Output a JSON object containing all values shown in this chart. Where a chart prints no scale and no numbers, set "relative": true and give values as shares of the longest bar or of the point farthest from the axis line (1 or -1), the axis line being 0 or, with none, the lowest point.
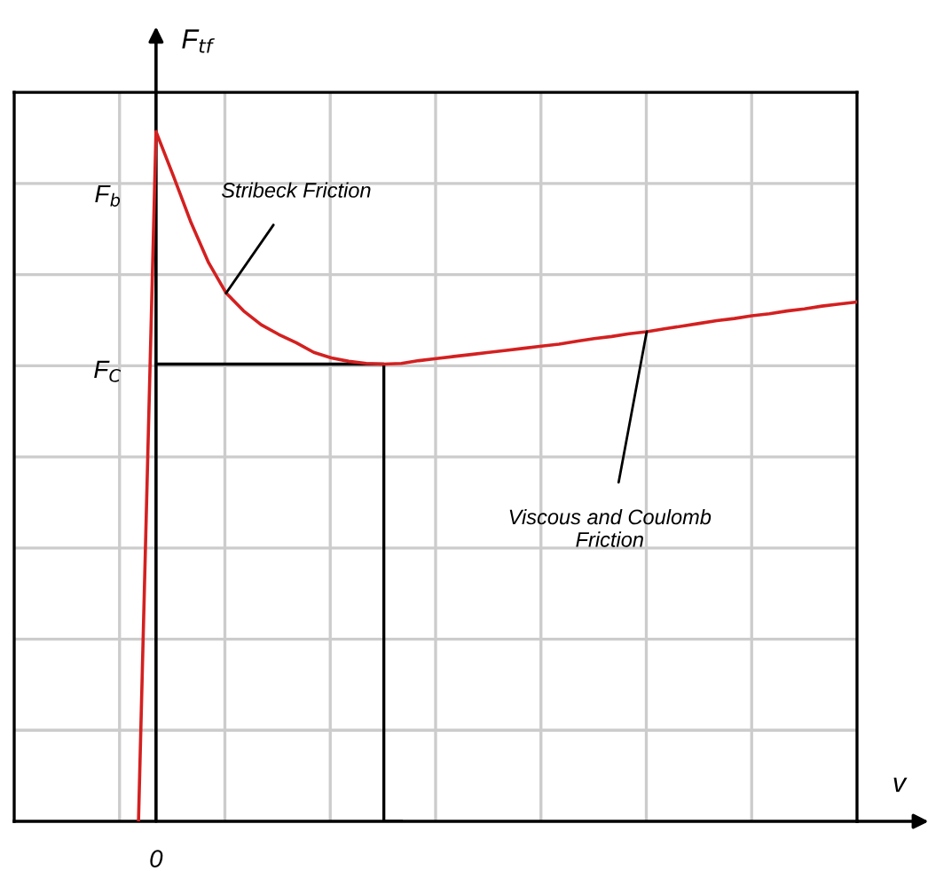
{
  "chart_data": {
    "type": "line",
    "relative": true,
    "ylabel": "F$_{tf}$",
    "xlabel": "v",
    "categories": [
      null,
      null,
      null,
      null,
      null,
      null,
      null,
      null,
      null,
      null,
      null,
      null,
      null,
      null,
      null,
      null,
      null,
      null,
      null,
      null,
      null,
      null,
      null,
      null,
      null,
      null,
      null,
      null,
      null,
      null,
      null,
      null,
      null,
      null,
      null,
      null,
      null,
      null,
      null,
      null,
      null,
      null
    ],
    "series": [
      {
        "color": "#d42020",
        "values": [
          0,
          1.0,
          0.935,
          0.868,
          0.81,
          0.766,
          0.74,
          0.72,
          0.706,
          0.694,
          0.68,
          0.672,
          0.667,
          0.664,
          0.663,
          0.664,
          0.668,
          0.671,
          0.674,
          0.677,
          0.68,
          0.683,
          0.686,
          0.689,
          0.692,
          0.696,
          0.7,
          0.703,
          0.707,
          0.71,
          0.714,
          0.718,
          0.722,
          0.726,
          0.729,
          0.733,
          0.736,
          0.74,
          0.743,
          0.747,
          0.75,
          0.753
        ]
      },
      {
        "type": "step",
        "color": "#000000",
        "values": [
          null,
          0.663,
          0.663,
          0.663,
          0.663,
          0.663,
          0.663,
          0.663,
          0.663,
          0.663,
          0.663,
          0.663,
          0.663,
          0.663,
          0.663,
          0,
          null,
          null,
          null,
          null,
          null,
          null,
          null,
          null,
          null,
          null,
          null,
          null,
          null,
          null,
          null,
          null,
          null,
          null,
          null,
          null,
          null,
          null,
          null,
          null,
          null,
          null
        ]
      }
    ],
    "grid": true,
    "legend": false,
    "marker": "none",
    "line_style": "solid",
    "annotations": [
      "0",
      "F$_{C}$",
      "F$_{b}$",
      "Stribeck Friction",
      "Viscous and Coulomb\nFriction"
    ]
  }
}
